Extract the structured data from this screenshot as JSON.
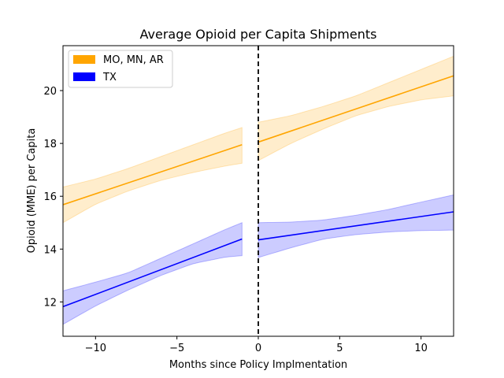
{
  "chart_data": {
    "type": "line",
    "title": "Average Opioid per Capita Shipments",
    "xlabel": "Months since Policy Implmentation",
    "ylabel": "Opioid (MME) per Capita",
    "xlim": [
      -12,
      12
    ],
    "ylim": [
      10.7,
      21.7
    ],
    "xticks": [
      -10,
      -5,
      0,
      5,
      10
    ],
    "yticks": [
      12,
      14,
      16,
      18,
      20
    ],
    "xtick_labels": [
      "−10",
      "−5",
      "0",
      "5",
      "10"
    ],
    "ytick_labels": [
      "12",
      "14",
      "16",
      "18",
      "20"
    ],
    "grid": false,
    "legend_position": "top-left",
    "policy_line": {
      "x": 0,
      "style": "dashed",
      "color": "#000000"
    },
    "series": [
      {
        "name": "MO, MN, AR",
        "color": "#ffa500",
        "segments": [
          {
            "x": [
              -12,
              -1
            ],
            "y": [
              15.68,
              17.95
            ],
            "ci_x": [
              -12,
              -10,
              -8,
              -6,
              -4,
              -2,
              -1
            ],
            "ci_lower": [
              15.0,
              15.7,
              16.2,
              16.6,
              16.9,
              17.15,
              17.25
            ],
            "ci_upper": [
              16.35,
              16.65,
              17.05,
              17.5,
              17.95,
              18.4,
              18.6
            ]
          },
          {
            "x": [
              0,
              12
            ],
            "y": [
              18.05,
              20.56
            ],
            "ci_x": [
              0,
              2,
              4,
              6,
              8,
              10,
              12
            ],
            "ci_lower": [
              17.35,
              18.0,
              18.55,
              19.05,
              19.4,
              19.65,
              19.8
            ],
            "ci_upper": [
              18.8,
              19.05,
              19.4,
              19.8,
              20.3,
              20.8,
              21.3
            ]
          }
        ]
      },
      {
        "name": "TX",
        "color": "#0000ff",
        "segments": [
          {
            "x": [
              -12,
              -1
            ],
            "y": [
              11.82,
              14.38
            ],
            "ci_x": [
              -12,
              -10,
              -8,
              -6,
              -4,
              -2,
              -1
            ],
            "ci_lower": [
              11.15,
              11.85,
              12.45,
              13.0,
              13.45,
              13.7,
              13.75
            ],
            "ci_upper": [
              12.42,
              12.75,
              13.1,
              13.65,
              14.2,
              14.75,
              15.0
            ]
          },
          {
            "x": [
              0,
              12
            ],
            "y": [
              14.35,
              15.41
            ],
            "ci_x": [
              0,
              2,
              4,
              6,
              8,
              10,
              12
            ],
            "ci_lower": [
              13.68,
              14.05,
              14.38,
              14.55,
              14.65,
              14.7,
              14.72
            ],
            "ci_upper": [
              15.0,
              15.02,
              15.1,
              15.28,
              15.5,
              15.78,
              16.05
            ]
          }
        ]
      }
    ]
  }
}
